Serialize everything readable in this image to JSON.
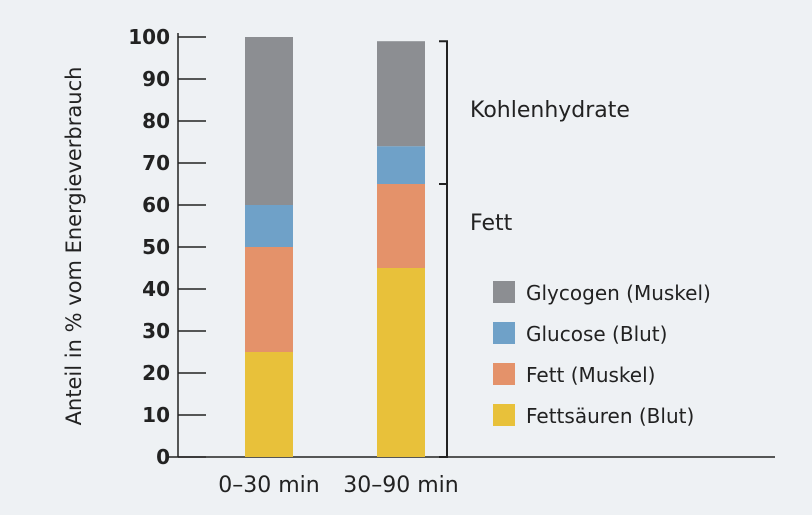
{
  "chart_data": {
    "type": "bar",
    "stacked": true,
    "ylabel": "Anteil in % vom Energieverbrauch",
    "ylim": [
      0,
      100
    ],
    "yticks": [
      0,
      10,
      20,
      30,
      40,
      50,
      60,
      70,
      80,
      90,
      100
    ],
    "categories": [
      "0–30 min",
      "30–90 min"
    ],
    "series": [
      {
        "name": "Fettsäuren (Blut)",
        "color": "#e8c13a",
        "values": [
          25,
          45
        ]
      },
      {
        "name": "Fett (Muskel)",
        "color": "#e4926a",
        "values": [
          25,
          20
        ]
      },
      {
        "name": "Glucose (Blut)",
        "color": "#6fa1c8",
        "values": [
          10,
          9
        ]
      },
      {
        "name": "Glycogen (Muskel)",
        "color": "#8c8e92",
        "values": [
          40,
          25
        ]
      }
    ],
    "legend_order": [
      "Glycogen (Muskel)",
      "Glucose (Blut)",
      "Fett (Muskel)",
      "Fettsäuren (Blut)"
    ],
    "legend_position": "right",
    "annotations": [
      {
        "text": "Kohlenhydrate",
        "range": [
          65,
          99
        ]
      },
      {
        "text": "Fett",
        "range": [
          0,
          65
        ]
      }
    ],
    "grid": false
  }
}
